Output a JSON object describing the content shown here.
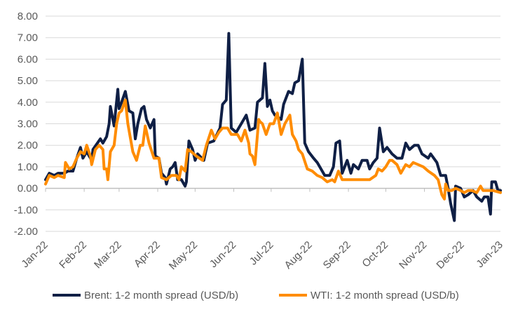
{
  "chart_data": {
    "type": "line",
    "title": "",
    "xlabel": "",
    "ylabel": "",
    "x_unit": "days since 1 Jan 2022",
    "ylim": [
      -2,
      8
    ],
    "yticks": [
      -2,
      -1,
      0,
      1,
      2,
      3,
      4,
      5,
      6,
      7,
      8
    ],
    "ytick_labels": [
      "-2.00",
      "-1.00",
      "0.00",
      "1.00",
      "2.00",
      "3.00",
      "4.00",
      "5.00",
      "6.00",
      "7.00",
      "8.00"
    ],
    "xlim": [
      0,
      365
    ],
    "xticks": [
      0,
      31,
      59,
      90,
      120,
      151,
      181,
      212,
      243,
      273,
      304,
      334,
      365
    ],
    "xtick_labels": [
      "Jan-22",
      "Feb-22",
      "Mar-22",
      "Apr-22",
      "May-22",
      "Jun-22",
      "Jul-22",
      "Aug-22",
      "Sep-22",
      "Oct-22",
      "Nov-22",
      "Dec-22",
      "Jan-23"
    ],
    "grid": true,
    "legend_position": "bottom",
    "series": [
      {
        "name": "Brent: 1-2 month spread (USD/b)",
        "color": "#0f1f45",
        "x": [
          0,
          3,
          7,
          10,
          15,
          18,
          22,
          25,
          28,
          30,
          33,
          37,
          38,
          44,
          46,
          49,
          51,
          52,
          55,
          58,
          59,
          61,
          64,
          67,
          70,
          72,
          74,
          77,
          79,
          81,
          84,
          87,
          88,
          91,
          93,
          96,
          97,
          100,
          102,
          104,
          106,
          109,
          112,
          113,
          115,
          118,
          120,
          122,
          127,
          130,
          135,
          140,
          142,
          145,
          147,
          149,
          153,
          157,
          161,
          164,
          168,
          170,
          172,
          174,
          176,
          178,
          180,
          182,
          184,
          189,
          191,
          195,
          198,
          200,
          203,
          206,
          208,
          211,
          215,
          218,
          224,
          228,
          231,
          233,
          236,
          238,
          242,
          245,
          247,
          251,
          254,
          258,
          260,
          263,
          266,
          268,
          271,
          274,
          278,
          282,
          286,
          289,
          292,
          296,
          299,
          302,
          307,
          309,
          314,
          317,
          321,
          323,
          325,
          328,
          329,
          333,
          336,
          339,
          343,
          346,
          350,
          352,
          355,
          357,
          358,
          361,
          363,
          365
        ],
        "values": [
          0.4,
          0.7,
          0.6,
          0.7,
          0.7,
          0.8,
          0.8,
          1.4,
          1.9,
          1.4,
          1.7,
          1.3,
          1.8,
          2.3,
          2.1,
          2.4,
          3.0,
          3.8,
          2.9,
          4.6,
          3.7,
          4.0,
          4.5,
          3.6,
          3.5,
          2.3,
          3.0,
          3.7,
          3.8,
          3.2,
          2.8,
          3.2,
          1.5,
          1.4,
          0.7,
          0.5,
          0.2,
          0.9,
          1.0,
          1.2,
          0.4,
          0.4,
          0.1,
          0.3,
          2.2,
          1.8,
          1.3,
          1.6,
          1.3,
          2.1,
          2.2,
          2.8,
          3.9,
          4.1,
          7.2,
          2.8,
          2.6,
          3.0,
          3.4,
          2.7,
          2.8,
          4.0,
          4.1,
          4.2,
          5.8,
          3.8,
          4.1,
          3.6,
          3.4,
          3.2,
          3.9,
          4.5,
          4.4,
          4.9,
          5.0,
          6.0,
          2.1,
          1.7,
          1.4,
          1.2,
          0.6,
          0.6,
          1.0,
          2.1,
          2.2,
          0.7,
          1.3,
          0.7,
          1.1,
          0.9,
          1.3,
          1.3,
          0.9,
          1.2,
          1.4,
          2.8,
          1.7,
          1.9,
          1.6,
          1.4,
          1.4,
          2.1,
          1.8,
          2.0,
          2.0,
          1.6,
          1.4,
          1.6,
          1.2,
          0.6,
          0.6,
          0.0,
          -0.7,
          -1.5,
          0.1,
          0.0,
          -0.4,
          -0.3,
          -0.1,
          -0.4,
          -0.6,
          -0.4,
          -0.4,
          -1.2,
          0.3,
          0.3,
          -0.1,
          -0.1
        ]
      },
      {
        "name": "WTI: 1-2 month spread (USD/b)",
        "color": "#ff8c00",
        "x": [
          0,
          3,
          7,
          10,
          15,
          16,
          19,
          22,
          25,
          28,
          31,
          33,
          36,
          37,
          40,
          43,
          46,
          47,
          49,
          50,
          52,
          55,
          57,
          59,
          61,
          64,
          66,
          70,
          73,
          76,
          78,
          80,
          83,
          87,
          91,
          93,
          97,
          101,
          105,
          107,
          109,
          112,
          114,
          117,
          121,
          126,
          129,
          133,
          136,
          139,
          142,
          146,
          149,
          154,
          157,
          160,
          163,
          164,
          166,
          168,
          171,
          172,
          174,
          177,
          180,
          183,
          186,
          189,
          192,
          196,
          198,
          201,
          203,
          206,
          210,
          214,
          218,
          222,
          226,
          230,
          232,
          235,
          238,
          243,
          246,
          249,
          252,
          256,
          260,
          265,
          267,
          270,
          273,
          276,
          278,
          282,
          285,
          289,
          292,
          295,
          299,
          303,
          307,
          312,
          315,
          318,
          320,
          321,
          323,
          326,
          329,
          333,
          336,
          339,
          342,
          346,
          349,
          351,
          355,
          359,
          365
        ],
        "values": [
          0.2,
          0.6,
          0.5,
          0.6,
          0.5,
          1.2,
          0.9,
          1.0,
          1.4,
          1.7,
          1.6,
          2.0,
          1.5,
          1.1,
          1.8,
          2.0,
          1.8,
          0.9,
          0.9,
          0.4,
          1.7,
          2.0,
          3.0,
          3.5,
          3.6,
          4.1,
          3.0,
          1.7,
          1.3,
          2.0,
          2.0,
          2.9,
          2.1,
          1.4,
          1.4,
          0.5,
          0.4,
          0.6,
          0.6,
          0.4,
          1.0,
          0.8,
          1.8,
          1.7,
          1.5,
          1.3,
          2.0,
          2.7,
          2.3,
          2.6,
          2.8,
          2.8,
          2.5,
          2.5,
          2.2,
          2.7,
          2.1,
          1.6,
          1.5,
          1.1,
          3.2,
          3.1,
          3.0,
          2.5,
          3.0,
          3.0,
          3.5,
          2.5,
          3.0,
          3.4,
          2.5,
          2.2,
          1.8,
          1.6,
          0.9,
          0.8,
          0.6,
          0.5,
          0.3,
          0.4,
          0.3,
          0.8,
          0.4,
          0.4,
          0.4,
          0.4,
          0.4,
          0.4,
          0.4,
          0.6,
          0.9,
          0.8,
          1.0,
          1.3,
          1.3,
          1.1,
          0.7,
          1.1,
          1.0,
          1.2,
          1.1,
          1.0,
          0.8,
          0.6,
          0.4,
          -0.3,
          -0.5,
          0.2,
          -0.1,
          -0.1,
          0.0,
          -0.1,
          -0.2,
          -0.1,
          -0.1,
          -0.2,
          0.1,
          -0.1,
          -0.1,
          -0.1,
          -0.2
        ]
      }
    ]
  }
}
